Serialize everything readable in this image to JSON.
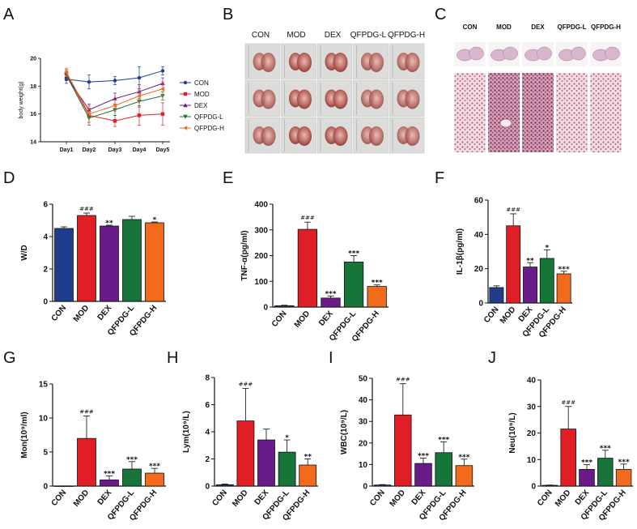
{
  "panel_letters": [
    "A",
    "B",
    "C",
    "D",
    "E",
    "F",
    "G",
    "H",
    "I",
    "J"
  ],
  "colors": {
    "CON": "#1f3d8c",
    "MOD": "#e01e26",
    "DEX": "#6a1b8a",
    "QFPDG-L": "#17753a",
    "QFPDG-H": "#f26b1d",
    "axis": "#111111"
  },
  "photo_b": {
    "labels": [
      "CON",
      "MOD",
      "DEX",
      "QFPDG-L",
      "QFPDG-H"
    ],
    "rows": 3
  },
  "photo_c": {
    "labels": [
      "CON",
      "MOD",
      "DEX",
      "QFPDG-L",
      "QFPDG-H"
    ]
  },
  "chart_data": [
    {
      "id": "A",
      "type": "line",
      "title": "",
      "xlabel": "",
      "ylabel": "body weight(g)",
      "categories": [
        "Day1",
        "Day2",
        "Day3",
        "Day4",
        "Day5"
      ],
      "ylim": [
        14,
        20
      ],
      "yticks": [
        14,
        16,
        18,
        20
      ],
      "series": [
        {
          "name": "CON",
          "values": [
            18.5,
            18.3,
            18.4,
            18.6,
            19.1
          ],
          "err": [
            0.3,
            0.5,
            0.3,
            0.8,
            0.3
          ]
        },
        {
          "name": "MOD",
          "values": [
            18.9,
            15.9,
            15.5,
            15.9,
            16.0
          ],
          "err": [
            0.3,
            0.5,
            0.4,
            0.7,
            0.8
          ]
        },
        {
          "name": "DEX",
          "values": [
            18.7,
            16.3,
            17.1,
            17.6,
            18.2
          ],
          "err": [
            0.3,
            0.4,
            0.4,
            0.5,
            0.4
          ]
        },
        {
          "name": "QFPDG-L",
          "values": [
            18.8,
            15.7,
            16.3,
            16.9,
            17.3
          ],
          "err": [
            0.3,
            0.5,
            0.4,
            0.4,
            0.3
          ]
        },
        {
          "name": "QFPDG-H",
          "values": [
            19.0,
            16.0,
            16.6,
            17.3,
            17.8
          ],
          "err": [
            0.3,
            0.6,
            0.4,
            0.4,
            0.5
          ]
        }
      ],
      "legend": "right"
    },
    {
      "id": "D",
      "type": "bar",
      "ylabel": "W/D",
      "categories": [
        "CON",
        "MOD",
        "DEX",
        "QFPDG-L",
        "QFPDG-H"
      ],
      "values": [
        4.5,
        5.3,
        4.65,
        5.05,
        4.85
      ],
      "err": [
        0.1,
        0.15,
        0.05,
        0.2,
        0.05
      ],
      "sig": [
        "",
        "###",
        "**",
        "",
        "*"
      ],
      "ylim": [
        0,
        6
      ],
      "yticks": [
        0,
        2,
        4,
        6
      ]
    },
    {
      "id": "E",
      "type": "bar",
      "ylabel": "TNF-α(pg/ml)",
      "categories": [
        "CON",
        "MOD",
        "DEX",
        "QFPDG-L",
        "QFPDG-H"
      ],
      "values": [
        5,
        302,
        35,
        175,
        80
      ],
      "err": [
        2,
        28,
        8,
        25,
        6
      ],
      "sig": [
        "",
        "###",
        "***",
        "***",
        "***"
      ],
      "ylim": [
        0,
        400
      ],
      "yticks": [
        0,
        100,
        200,
        300,
        400
      ]
    },
    {
      "id": "F",
      "type": "bar",
      "ylabel": "IL-1β(pg/ml)",
      "categories": [
        "CON",
        "MOD",
        "DEX",
        "QFPDG-L",
        "QFPDG-H"
      ],
      "values": [
        9,
        45,
        21,
        26,
        17
      ],
      "err": [
        1,
        7,
        2.5,
        5,
        1.5
      ],
      "sig": [
        "",
        "###",
        "**",
        "*",
        "***"
      ],
      "ylim": [
        0,
        60
      ],
      "yticks": [
        0,
        20,
        40,
        60
      ]
    },
    {
      "id": "G",
      "type": "bar",
      "ylabel": "Mon(10⁹/ml)",
      "categories": [
        "CON",
        "MOD",
        "DEX",
        "QFPDG-L",
        "QFPDG-H"
      ],
      "values": [
        0,
        7,
        0.9,
        2.5,
        1.9
      ],
      "err": [
        0,
        3.3,
        0.6,
        1.1,
        0.7
      ],
      "sig": [
        "",
        "###",
        "***",
        "***",
        "***"
      ],
      "ylim": [
        0,
        15
      ],
      "yticks": [
        0,
        5,
        10,
        15
      ]
    },
    {
      "id": "H",
      "type": "bar",
      "ylabel": "Lym(10⁹/L)",
      "categories": [
        "CON",
        "MOD",
        "DEX",
        "QFPDG-L",
        "QFPDG-H"
      ],
      "values": [
        0.1,
        4.8,
        3.4,
        2.5,
        1.55
      ],
      "err": [
        0.05,
        2.4,
        0.8,
        0.9,
        0.45
      ],
      "sig": [
        "",
        "###",
        "",
        "*",
        "**"
      ],
      "ylim": [
        0,
        8
      ],
      "yticks": [
        0,
        2,
        4,
        6,
        8
      ]
    },
    {
      "id": "I",
      "type": "bar",
      "ylabel": "WBC(10⁹/L)",
      "categories": [
        "CON",
        "MOD",
        "DEX",
        "QFPDG-L",
        "QFPDG-H"
      ],
      "values": [
        0.5,
        33,
        10.5,
        15.5,
        9.5
      ],
      "err": [
        0.2,
        14.5,
        2.5,
        5,
        3
      ],
      "sig": [
        "",
        "###",
        "***",
        "***",
        "***"
      ],
      "ylim": [
        0,
        50
      ],
      "yticks": [
        0,
        10,
        20,
        30,
        40,
        50
      ]
    },
    {
      "id": "J",
      "type": "bar",
      "ylabel": "Neu(10⁹/L)",
      "categories": [
        "CON",
        "MOD",
        "DEX",
        "QFPDG-L",
        "QFPDG-H"
      ],
      "values": [
        0.3,
        21.5,
        6.3,
        10.5,
        6.3
      ],
      "err": [
        0.1,
        8.5,
        1.8,
        3,
        2
      ],
      "sig": [
        "",
        "###",
        "***",
        "***",
        "***"
      ],
      "ylim": [
        0,
        40
      ],
      "yticks": [
        0,
        10,
        20,
        30,
        40
      ]
    }
  ]
}
